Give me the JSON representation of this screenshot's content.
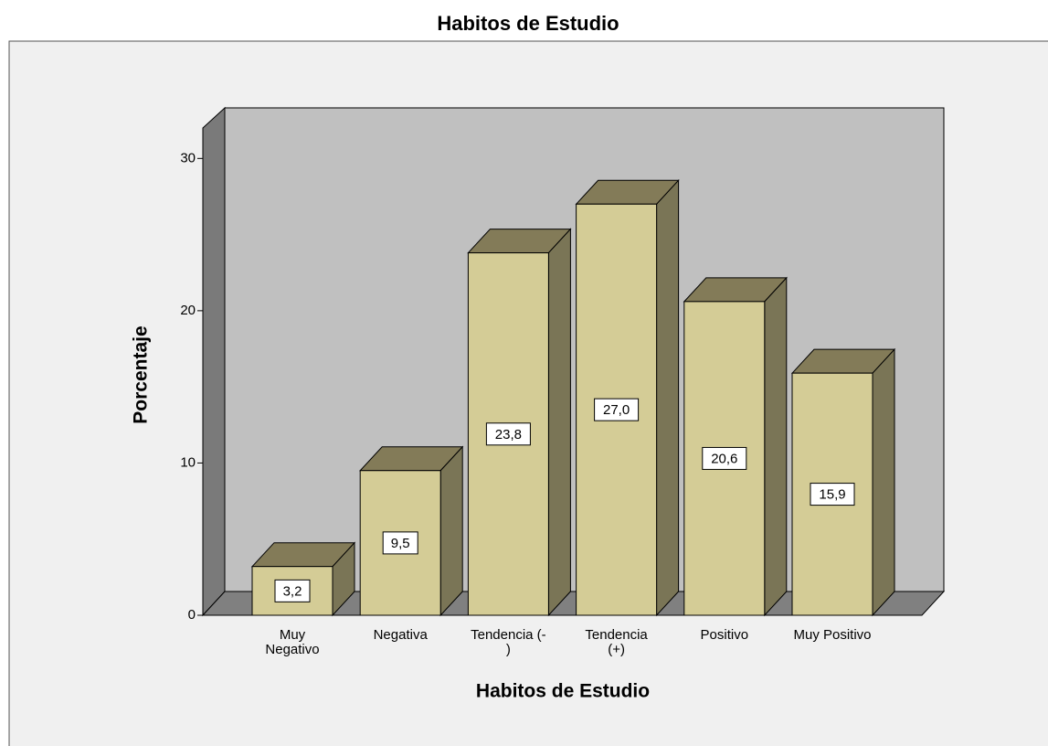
{
  "chart_data": {
    "type": "bar3d",
    "title": "Habitos de Estudio",
    "xlabel": "Habitos de Estudio",
    "ylabel": "Porcentaje",
    "categories": [
      "Muy\nNegativo",
      "Negativa",
      "Tendencia (-\n)",
      "Tendencia\n(+)",
      "Positivo",
      "Muy Positivo"
    ],
    "values": [
      3.2,
      9.5,
      23.8,
      27.0,
      20.6,
      15.9
    ],
    "value_labels": [
      "3,2",
      "9,5",
      "23,8",
      "27,0",
      "20,6",
      "15,9"
    ],
    "color": "#d4cc96",
    "ylim": [
      0,
      32
    ],
    "yticks": [
      0,
      10,
      20,
      30
    ]
  }
}
